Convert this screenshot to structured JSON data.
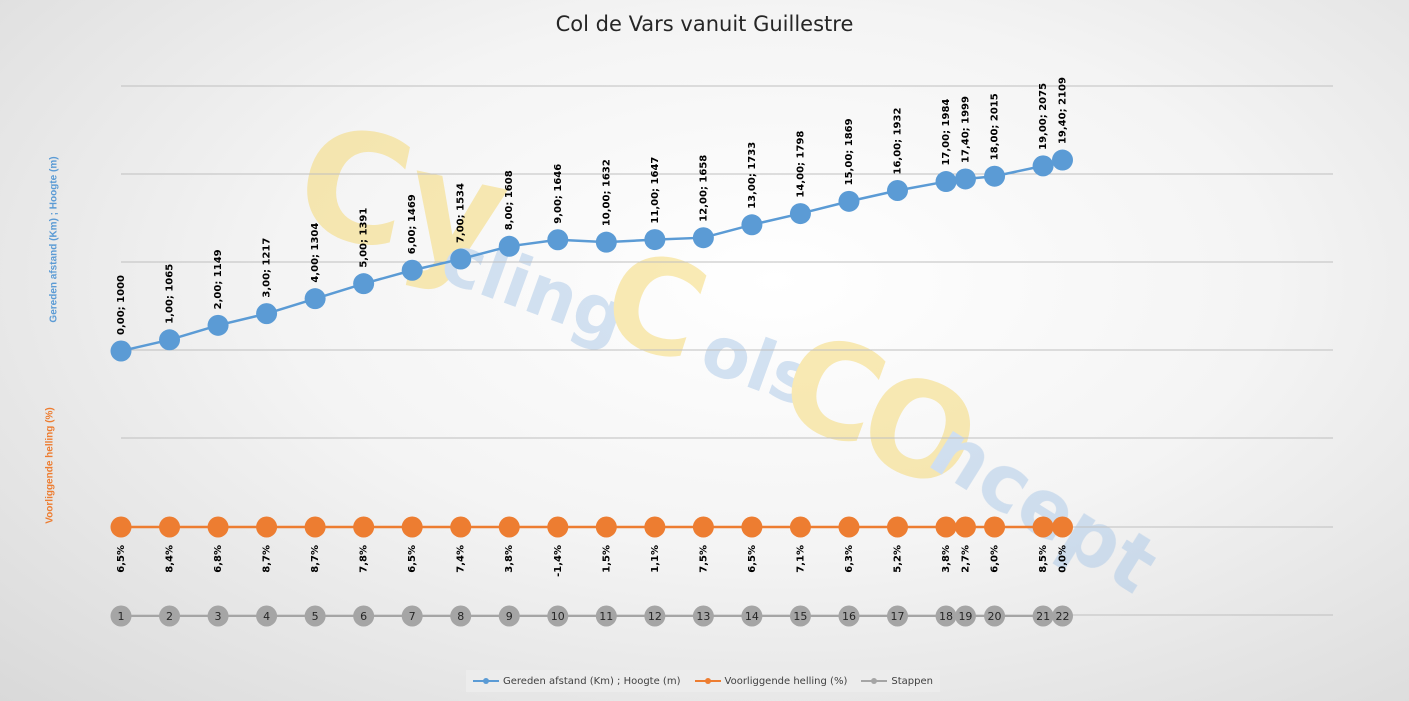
{
  "chart_data": {
    "type": "line",
    "title": "Col de Vars vanuit Guillestre",
    "ylabel_primary": "Gereden afstand (Km) ;  Hoogte (m)",
    "ylabel_secondary": "Voorliggende helling (%)",
    "x": [
      0.0,
      1.0,
      2.0,
      3.0,
      4.0,
      5.0,
      6.0,
      7.0,
      8.0,
      9.0,
      10.0,
      11.0,
      12.0,
      13.0,
      14.0,
      15.0,
      16.0,
      17.0,
      17.4,
      18.0,
      19.0,
      19.4
    ],
    "series": [
      {
        "name": "Gereden afstand (Km) ; Hoogte (m)",
        "color": "#5b9bd5",
        "values": [
          1000,
          1065,
          1149,
          1217,
          1304,
          1391,
          1469,
          1534,
          1608,
          1646,
          1632,
          1647,
          1658,
          1733,
          1798,
          1869,
          1932,
          1984,
          1999,
          2015,
          2075,
          2109
        ],
        "labels": [
          "0,00; 1000",
          "1,00; 1065",
          "2,00; 1149",
          "3,00; 1217",
          "4,00; 1304",
          "5,00; 1391",
          "6,00; 1469",
          "7,00; 1534",
          "8,00; 1608",
          "9,00; 1646",
          "10,00; 1632",
          "11,00; 1647",
          "12,00; 1658",
          "13,00; 1733",
          "14,00; 1798",
          "15,00; 1869",
          "16,00; 1932",
          "17,00; 1984",
          "17,40; 1999",
          "18,00; 2015",
          "19,00; 2075",
          "19,40; 2109"
        ]
      },
      {
        "name": "Voorliggende helling (%)",
        "color": "#ed7d31",
        "labels": [
          "6,5%",
          "8,4%",
          "6,8%",
          "8,7%",
          "8,7%",
          "7,8%",
          "6,5%",
          "7,4%",
          "3,8%",
          "-1,4%",
          "1,5%",
          "1,1%",
          "7,5%",
          "6,5%",
          "7,1%",
          "6,3%",
          "5,2%",
          "3,8%",
          "2,7%",
          "6,0%",
          "8,5%",
          "0,0%"
        ]
      },
      {
        "name": "Stappen",
        "color": "#a5a5a5",
        "labels": [
          "1",
          "2",
          "3",
          "4",
          "5",
          "6",
          "7",
          "8",
          "9",
          "10",
          "11",
          "12",
          "13",
          "14",
          "15",
          "16",
          "17",
          "18",
          "19",
          "20",
          "21",
          "22"
        ]
      }
    ],
    "grid": true,
    "legend": "bottom"
  },
  "watermark": {
    "lines": [
      "Cy",
      "cling",
      "C",
      "ols",
      "C",
      "O",
      "ncept"
    ]
  }
}
